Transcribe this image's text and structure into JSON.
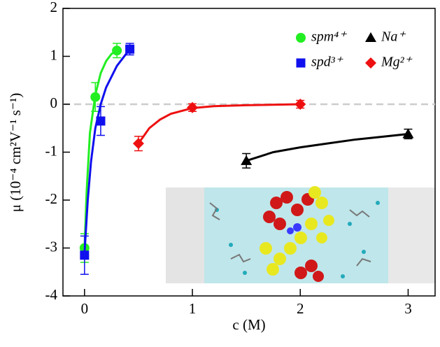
{
  "chart_data": {
    "type": "scatter",
    "x_label": "c (M)",
    "y_label": "μ (10⁻⁴ cm²V⁻¹ s⁻¹)",
    "xlim": [
      -0.2,
      3.25
    ],
    "ylim": [
      -4,
      2
    ],
    "xticks": [
      0,
      1,
      2,
      3
    ],
    "yticks": [
      -4,
      -3,
      -2,
      -1,
      0,
      1,
      2
    ],
    "series": [
      {
        "name": "spm⁴⁺",
        "color": "#22ee22",
        "marker": "circle",
        "x": [
          0,
          0.1,
          0.3
        ],
        "values": [
          -3.0,
          0.15,
          1.12
        ],
        "errors": [
          0.3,
          0.3,
          0.15
        ],
        "fit_x": [
          0,
          0.02,
          0.05,
          0.1,
          0.15,
          0.2,
          0.25,
          0.3
        ],
        "fit_y": [
          -3,
          -1.8,
          -0.6,
          0.2,
          0.65,
          0.9,
          1.05,
          1.12
        ]
      },
      {
        "name": "spd³⁺",
        "color": "#1010ee",
        "marker": "square",
        "x": [
          0,
          0.15,
          0.42
        ],
        "values": [
          -3.15,
          -0.35,
          1.15
        ],
        "errors": [
          0.4,
          0.3,
          0.12
        ],
        "fit_x": [
          0,
          0.03,
          0.06,
          0.1,
          0.15,
          0.2,
          0.3,
          0.42
        ],
        "fit_y": [
          -3.1,
          -2.0,
          -1.2,
          -0.5,
          0,
          0.35,
          0.8,
          1.15
        ]
      },
      {
        "name": "Na⁺",
        "color": "#000000",
        "marker": "triangle",
        "x": [
          1.5,
          3
        ],
        "values": [
          -1.18,
          -0.62
        ],
        "errors": [
          0.15,
          0.1
        ],
        "fit_x": [
          1.5,
          1.75,
          2,
          2.25,
          2.5,
          2.75,
          3
        ],
        "fit_y": [
          -1.18,
          -1.0,
          -0.9,
          -0.82,
          -0.74,
          -0.68,
          -0.62
        ]
      },
      {
        "name": "Mg²⁺",
        "color": "#ee1010",
        "marker": "diamond",
        "x": [
          0.5,
          1,
          2
        ],
        "values": [
          -0.82,
          -0.07,
          0.0
        ],
        "errors": [
          0.15,
          0.08,
          0.08
        ],
        "fit_x": [
          0.5,
          0.6,
          0.7,
          0.8,
          1,
          1.2,
          1.5,
          2
        ],
        "fit_y": [
          -0.82,
          -0.5,
          -0.32,
          -0.2,
          -0.08,
          -0.04,
          -0.02,
          0
        ]
      }
    ]
  }
}
